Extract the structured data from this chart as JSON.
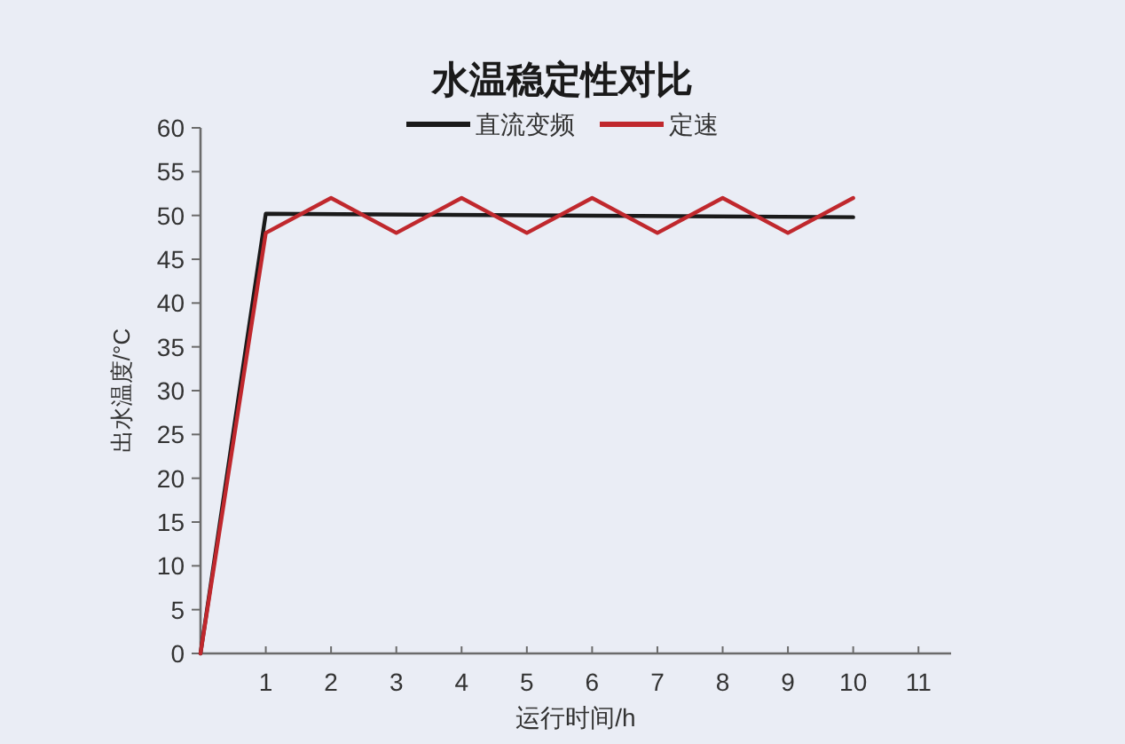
{
  "chart_data": {
    "type": "line",
    "title": "水温稳定性对比",
    "xlabel": "运行时间/h",
    "ylabel": "出水温度/°C",
    "series": [
      {
        "name": "直流变频",
        "color": "#1a1a1a",
        "x": [
          0,
          1,
          10
        ],
        "values": [
          0,
          50.2,
          49.8
        ]
      },
      {
        "name": "定速",
        "color": "#c0282d",
        "x": [
          0,
          1,
          2,
          3,
          4,
          5,
          6,
          7,
          8,
          9,
          10
        ],
        "values": [
          0,
          48,
          52,
          48,
          52,
          48,
          52,
          48,
          52,
          48,
          52
        ]
      }
    ],
    "xlim": [
      0,
      11.5
    ],
    "xticks": [
      1,
      2,
      3,
      4,
      5,
      6,
      7,
      8,
      9,
      10,
      11
    ],
    "ylim": [
      0,
      60
    ],
    "yticks": [
      0,
      5,
      10,
      15,
      20,
      25,
      30,
      35,
      40,
      45,
      50,
      55,
      60
    ],
    "legend": "top",
    "grid": false,
    "marker": "none",
    "line_style": "solid"
  }
}
